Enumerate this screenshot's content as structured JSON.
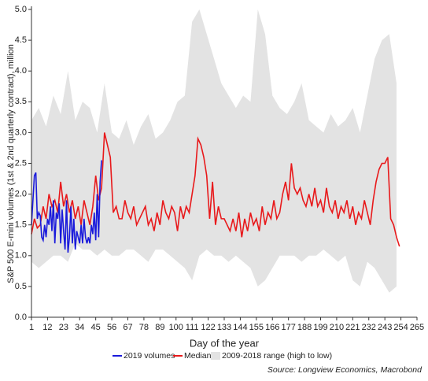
{
  "chart_data": {
    "type": "line",
    "y_label": "S&P 500 E-mini volumes (1st & 2nd quarterly contract), million",
    "x_label": "Day of the year",
    "source": "Source: Longview Economics, Macrobond",
    "xlim": [
      1,
      265
    ],
    "xticks": [
      1,
      12,
      23,
      34,
      45,
      56,
      67,
      78,
      89,
      100,
      111,
      122,
      133,
      144,
      155,
      166,
      177,
      188,
      199,
      210,
      221,
      232,
      243,
      254,
      265
    ],
    "ylim": [
      0,
      5.0
    ],
    "yticks": [
      {
        "value": 0,
        "label": "0.0"
      },
      0.5,
      {
        "value": 1,
        "label": "1.0"
      },
      1.5,
      {
        "value": 2,
        "label": "2.0"
      },
      2.5,
      {
        "value": 3,
        "label": "3.0"
      },
      3.5,
      {
        "value": 4,
        "label": "4.0"
      },
      4.5,
      {
        "value": 5,
        "label": "5.0"
      }
    ],
    "band": {
      "name": "2009-2018 range (high to low)",
      "color": "#e3e3e3",
      "x": [
        1,
        6,
        11,
        16,
        21,
        26,
        31,
        36,
        41,
        46,
        51,
        56,
        61,
        66,
        71,
        76,
        81,
        86,
        91,
        96,
        101,
        106,
        111,
        116,
        121,
        126,
        131,
        136,
        141,
        146,
        151,
        156,
        161,
        166,
        171,
        176,
        181,
        186,
        191,
        196,
        201,
        206,
        211,
        216,
        221,
        226,
        231,
        236,
        241,
        246,
        251
      ],
      "high": [
        3.2,
        3.4,
        3.1,
        3.6,
        3.3,
        4.0,
        3.2,
        3.5,
        3.4,
        3.0,
        3.8,
        3.0,
        2.9,
        3.2,
        2.8,
        3.1,
        3.3,
        2.9,
        3.0,
        3.2,
        3.5,
        3.6,
        4.8,
        5.0,
        4.6,
        4.2,
        3.8,
        3.6,
        3.4,
        3.6,
        3.5,
        5.0,
        4.6,
        3.6,
        3.4,
        3.3,
        3.5,
        3.8,
        3.2,
        3.1,
        3.0,
        3.3,
        3.1,
        3.2,
        3.4,
        3.0,
        3.6,
        4.2,
        4.5,
        4.6,
        3.8
      ],
      "low": [
        0.9,
        0.8,
        0.9,
        1.0,
        1.0,
        0.9,
        1.2,
        1.1,
        1.1,
        1.0,
        1.1,
        1.0,
        1.0,
        1.1,
        1.1,
        1.0,
        0.9,
        1.1,
        1.1,
        1.0,
        0.9,
        0.8,
        0.6,
        1.0,
        1.1,
        1.0,
        1.0,
        0.9,
        1.0,
        0.9,
        0.8,
        0.5,
        0.6,
        0.8,
        1.0,
        1.0,
        1.0,
        0.9,
        1.0,
        1.0,
        1.1,
        1.0,
        0.9,
        1.0,
        0.6,
        0.5,
        0.9,
        0.8,
        0.6,
        0.4,
        0.5
      ]
    },
    "series": [
      {
        "name": "2019 volumes",
        "color": "#1a1adb",
        "x": [
          1,
          2,
          3,
          4,
          5,
          6,
          7,
          8,
          9,
          10,
          11,
          12,
          13,
          14,
          15,
          16,
          17,
          18,
          19,
          20,
          21,
          22,
          23,
          24,
          25,
          26,
          27,
          28,
          29,
          30,
          31,
          32,
          33,
          34,
          35,
          36,
          37,
          38,
          39,
          40,
          41,
          42,
          43,
          44,
          45,
          46,
          47,
          48,
          49
        ],
        "values": [
          1.5,
          1.9,
          2.3,
          2.35,
          1.6,
          1.7,
          1.65,
          1.3,
          1.25,
          1.5,
          1.3,
          1.6,
          1.5,
          1.8,
          1.4,
          1.9,
          1.2,
          1.7,
          1.6,
          1.85,
          1.2,
          1.75,
          1.4,
          1.1,
          1.9,
          1.05,
          1.3,
          1.8,
          1.2,
          1.6,
          1.1,
          1.4,
          1.3,
          1.2,
          1.5,
          1.2,
          1.6,
          1.3,
          1.2,
          1.3,
          1.2,
          1.5,
          1.35,
          1.7,
          1.25,
          2.0,
          1.3,
          2.2,
          2.55
        ]
      },
      {
        "name": "Median",
        "color": "#e8191b",
        "x": [
          1,
          3,
          5,
          7,
          9,
          11,
          13,
          15,
          17,
          19,
          21,
          23,
          25,
          27,
          29,
          31,
          33,
          35,
          37,
          39,
          41,
          43,
          45,
          47,
          49,
          51,
          53,
          55,
          57,
          59,
          61,
          63,
          65,
          67,
          69,
          71,
          73,
          75,
          77,
          79,
          81,
          83,
          85,
          87,
          89,
          91,
          93,
          95,
          97,
          99,
          101,
          103,
          105,
          107,
          109,
          111,
          113,
          115,
          117,
          119,
          121,
          123,
          125,
          127,
          129,
          131,
          133,
          135,
          137,
          139,
          141,
          143,
          145,
          147,
          149,
          151,
          153,
          155,
          157,
          159,
          161,
          163,
          165,
          167,
          169,
          171,
          173,
          175,
          177,
          179,
          181,
          183,
          185,
          187,
          189,
          191,
          193,
          195,
          197,
          199,
          201,
          203,
          205,
          207,
          209,
          211,
          213,
          215,
          217,
          219,
          221,
          223,
          225,
          227,
          229,
          231,
          233,
          235,
          237,
          239,
          241,
          243,
          245,
          247,
          249,
          251,
          253
        ],
        "values": [
          1.35,
          1.6,
          1.45,
          1.5,
          1.8,
          1.6,
          2.0,
          1.8,
          1.9,
          1.7,
          2.2,
          1.8,
          2.0,
          1.7,
          1.9,
          1.6,
          1.8,
          1.5,
          1.9,
          1.7,
          1.5,
          1.8,
          2.3,
          1.9,
          2.1,
          3.0,
          2.8,
          2.6,
          1.7,
          1.8,
          1.6,
          1.6,
          1.9,
          1.7,
          1.6,
          1.8,
          1.5,
          1.6,
          1.7,
          1.8,
          1.5,
          1.6,
          1.4,
          1.7,
          1.5,
          1.9,
          1.7,
          1.6,
          1.8,
          1.7,
          1.4,
          1.8,
          1.6,
          1.8,
          1.7,
          2.0,
          2.3,
          2.9,
          2.8,
          2.6,
          2.3,
          1.6,
          2.2,
          1.5,
          1.8,
          1.6,
          1.6,
          1.5,
          1.4,
          1.6,
          1.4,
          1.7,
          1.3,
          1.6,
          1.4,
          1.7,
          1.5,
          1.6,
          1.4,
          1.8,
          1.5,
          1.7,
          1.6,
          1.9,
          1.6,
          1.7,
          2.0,
          2.2,
          1.9,
          2.5,
          2.1,
          2.0,
          2.1,
          1.9,
          1.8,
          2.0,
          1.8,
          2.1,
          1.8,
          1.9,
          1.7,
          2.1,
          1.8,
          1.7,
          1.9,
          1.6,
          1.8,
          1.7,
          1.9,
          1.6,
          1.8,
          1.5,
          1.7,
          1.6,
          1.9,
          1.7,
          1.5,
          1.9,
          2.2,
          2.4,
          2.5,
          2.5,
          2.6,
          1.6,
          1.5,
          1.3,
          1.15
        ]
      }
    ]
  }
}
